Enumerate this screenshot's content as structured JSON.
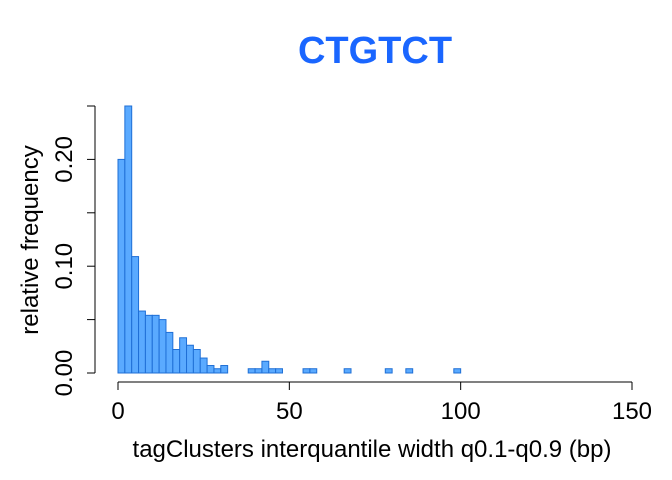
{
  "chart_data": {
    "type": "bar",
    "title": "CTGTCT",
    "xlabel": "tagClusters interquantile width q0.1-q0.9 (bp)",
    "ylabel": "relative frequency",
    "xlim": [
      0,
      150
    ],
    "ylim": [
      0,
      0.25
    ],
    "x_ticks": [
      0,
      50,
      100,
      150
    ],
    "x_tick_labels": [
      "0",
      "50",
      "100",
      "150"
    ],
    "y_ticks": [
      0.0,
      0.05,
      0.1,
      0.15,
      0.2,
      0.25
    ],
    "y_tick_labels": [
      "0.00",
      "",
      "0.10",
      "",
      "0.20",
      ""
    ],
    "bin_width": 2,
    "bins_start": [
      0,
      2,
      4,
      6,
      8,
      10,
      12,
      14,
      16,
      18,
      20,
      22,
      24,
      26,
      28,
      30,
      32,
      34,
      36,
      38,
      40,
      42,
      44,
      46,
      48,
      50,
      52,
      54,
      56,
      58,
      60,
      62,
      64,
      66,
      68,
      70,
      72,
      74,
      76,
      78,
      80,
      82,
      84,
      86,
      88,
      90,
      92,
      94,
      96,
      98
    ],
    "values": [
      0.2,
      0.25,
      0.109,
      0.058,
      0.054,
      0.054,
      0.05,
      0.038,
      0.022,
      0.033,
      0.026,
      0.022,
      0.014,
      0.007,
      0.004,
      0.007,
      0.0,
      0.0,
      0.0,
      0.004,
      0.004,
      0.011,
      0.004,
      0.004,
      0.0,
      0.0,
      0.0,
      0.004,
      0.004,
      0.0,
      0.0,
      0.0,
      0.0,
      0.004,
      0.0,
      0.0,
      0.0,
      0.0,
      0.0,
      0.004,
      0.0,
      0.0,
      0.004,
      0.0,
      0.0,
      0.0,
      0.0,
      0.0,
      0.0,
      0.004
    ],
    "bar_fill": "#5aaaff",
    "bar_stroke": "#1f6fd6",
    "title_color": "#1a66ff",
    "grid": false
  }
}
